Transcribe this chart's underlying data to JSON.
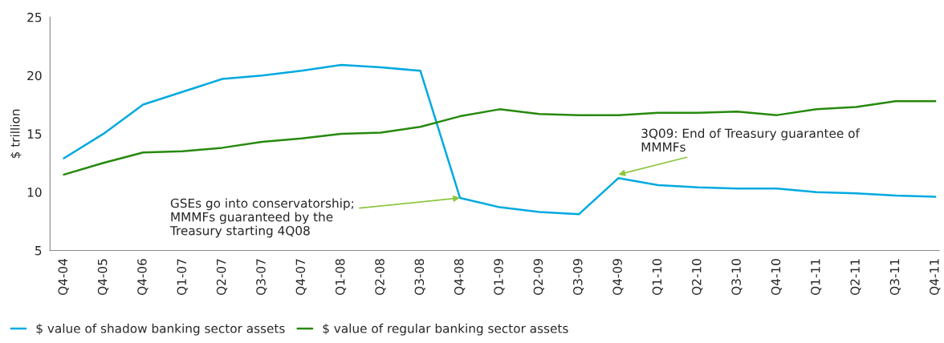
{
  "chart_data": {
    "type": "line",
    "ylabel": "$ trillion",
    "categories": [
      "Q4-04",
      "Q4-05",
      "Q4-06",
      "Q1-07",
      "Q2-07",
      "Q3-07",
      "Q4-07",
      "Q1-08",
      "Q2-08",
      "Q3-08",
      "Q4-08",
      "Q1-09",
      "Q2-09",
      "Q3-09",
      "Q4-09",
      "Q1-10",
      "Q2-10",
      "Q3-10",
      "Q4-10",
      "Q1-11",
      "Q2-11",
      "Q3-11",
      "Q4-11"
    ],
    "series": [
      {
        "name": "$ value of shadow banking sector assets",
        "color": "#00a9e0",
        "values": [
          12.9,
          15.0,
          17.5,
          18.6,
          19.7,
          20.0,
          20.4,
          20.9,
          20.7,
          20.4,
          9.5,
          8.7,
          8.3,
          8.1,
          11.2,
          10.6,
          10.4,
          10.3,
          10.3,
          10.0,
          9.9,
          9.7,
          9.6
        ]
      },
      {
        "name": "$ value of regular banking sector assets",
        "color": "#26890d",
        "values": [
          11.5,
          12.5,
          13.4,
          13.5,
          13.8,
          14.3,
          14.6,
          15.0,
          15.1,
          15.6,
          16.5,
          17.1,
          16.7,
          16.6,
          16.6,
          16.8,
          16.8,
          16.9,
          16.6,
          17.1,
          17.3,
          17.8,
          17.8
        ]
      }
    ],
    "ylim": [
      5,
      25
    ],
    "yticks": [
      5,
      10,
      15,
      20,
      25
    ],
    "grid": false,
    "legend": "bottom left",
    "marker": "none",
    "line_style": "solid",
    "annotations": [
      {
        "text": "GSEs go into conservatorship;\nMMMFs guaranteed by the\nTreasury starting 4Q08",
        "x": "Q4-08",
        "y": 9.5
      },
      {
        "text": "3Q09: End of Treasury guarantee of\nMMMFs",
        "x": "Q4-09",
        "y": 11.5
      }
    ]
  }
}
